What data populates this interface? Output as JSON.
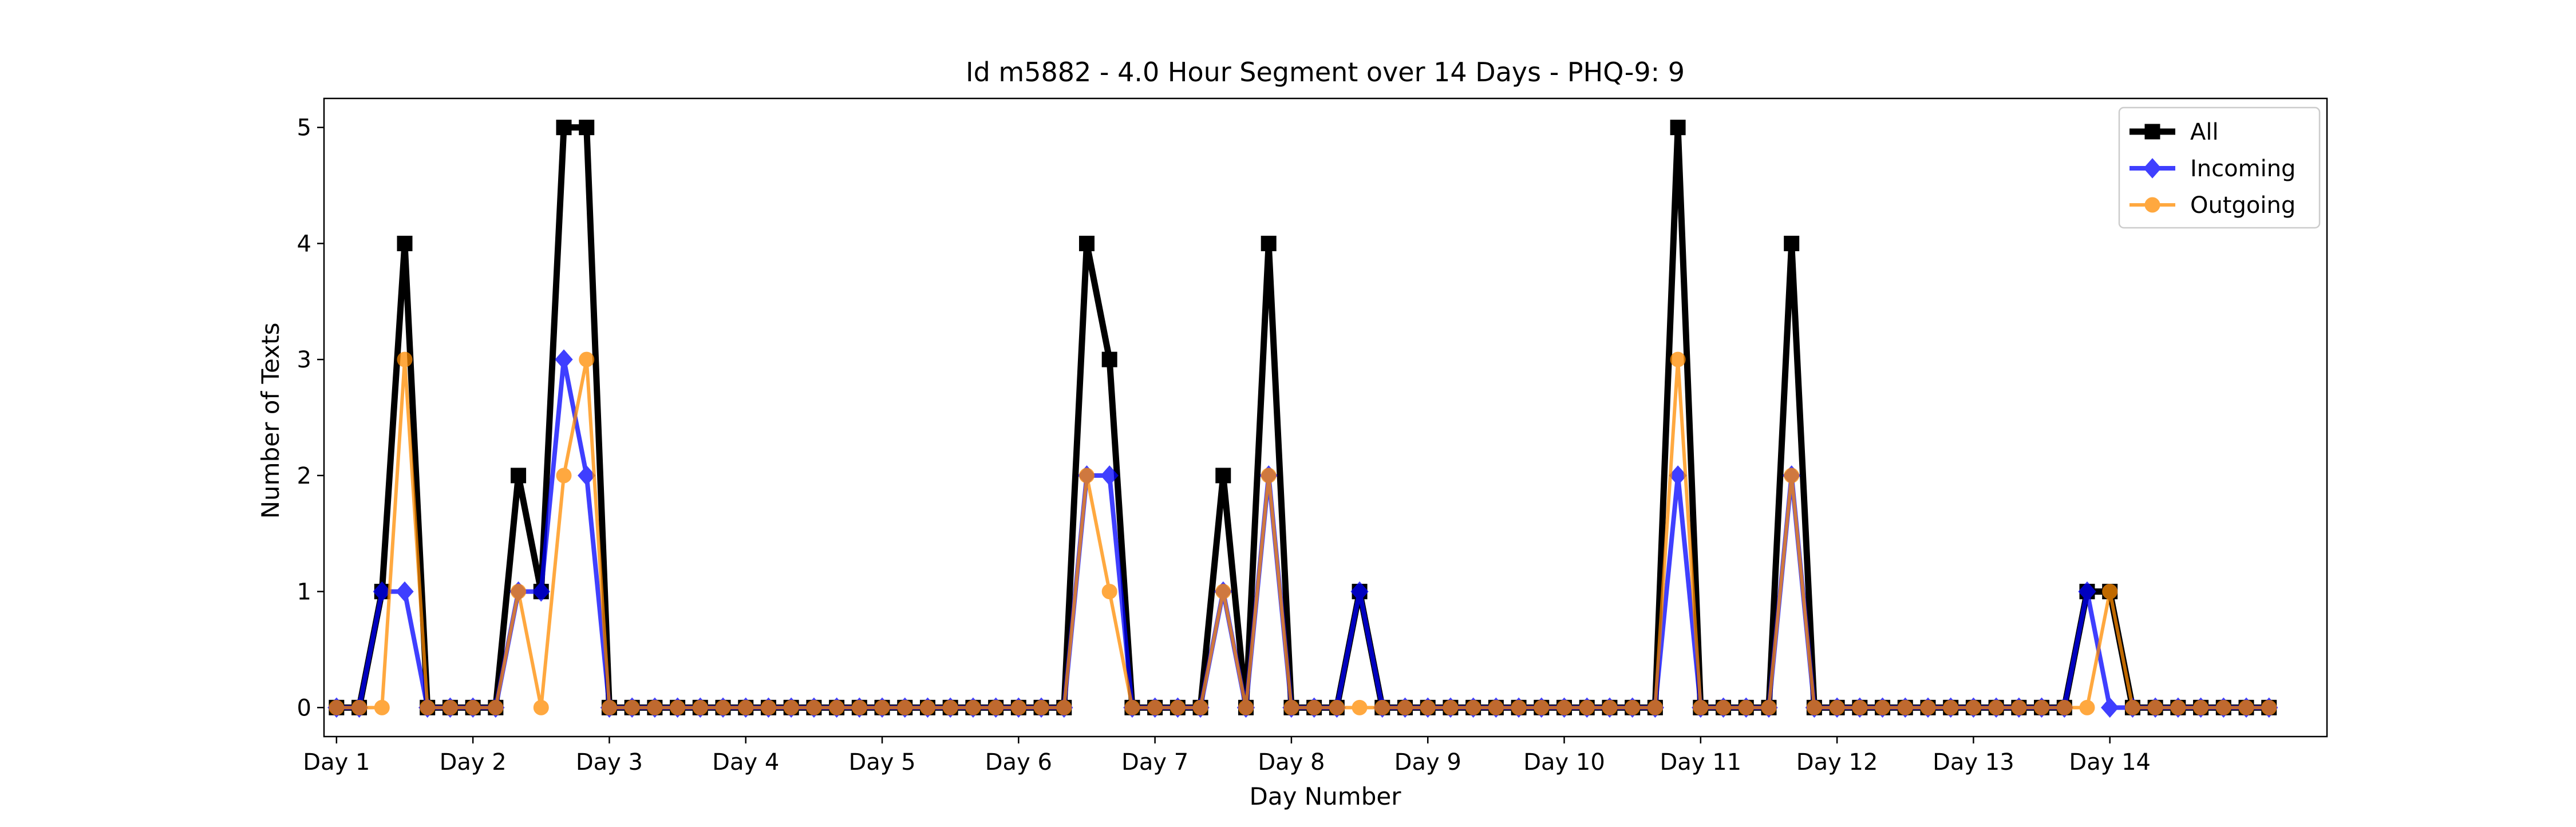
{
  "chart_data": {
    "type": "line",
    "title": "Id m5882 - 4.0 Hour Segment over 14 Days - PHQ-9: 9",
    "xlabel": "Day Number",
    "ylabel": "Number of Texts",
    "xlim": [
      -0.55,
      87.55
    ],
    "ylim": [
      -0.25,
      5.25
    ],
    "yticks": [
      0,
      1,
      2,
      3,
      4,
      5
    ],
    "xticks": [
      {
        "pos": 0,
        "label": "Day 1"
      },
      {
        "pos": 6,
        "label": "Day 2"
      },
      {
        "pos": 12,
        "label": "Day 3"
      },
      {
        "pos": 18,
        "label": "Day 4"
      },
      {
        "pos": 24,
        "label": "Day 5"
      },
      {
        "pos": 30,
        "label": "Day 6"
      },
      {
        "pos": 36,
        "label": "Day 7"
      },
      {
        "pos": 42,
        "label": "Day 8"
      },
      {
        "pos": 48,
        "label": "Day 9"
      },
      {
        "pos": 54,
        "label": "Day 10"
      },
      {
        "pos": 60,
        "label": "Day 11"
      },
      {
        "pos": 66,
        "label": "Day 12"
      },
      {
        "pos": 72,
        "label": "Day 13"
      },
      {
        "pos": 78,
        "label": "Day 14"
      }
    ],
    "legend_position": "top-right",
    "grid": false,
    "series": [
      {
        "name": "All",
        "color": "#000000",
        "marker": "square",
        "alpha": 1,
        "values": [
          0,
          0,
          1,
          4,
          0,
          0,
          0,
          0,
          2,
          1,
          5,
          5,
          0,
          0,
          0,
          0,
          0,
          0,
          0,
          0,
          0,
          0,
          0,
          0,
          0,
          0,
          0,
          0,
          0,
          0,
          0,
          0,
          0,
          4,
          3,
          0,
          0,
          0,
          0,
          2,
          0,
          4,
          0,
          0,
          0,
          1,
          0,
          0,
          0,
          0,
          0,
          0,
          0,
          0,
          0,
          0,
          0,
          0,
          0,
          5,
          0,
          0,
          0,
          0,
          4,
          0,
          0,
          0,
          0,
          0,
          0,
          0,
          0,
          0,
          0,
          0,
          0,
          1,
          1,
          0,
          0,
          0,
          0,
          0,
          0,
          0
        ]
      },
      {
        "name": "Incoming",
        "color": "#0000ff",
        "marker": "diamond",
        "alpha": 0.75,
        "values": [
          0,
          0,
          1,
          1,
          0,
          0,
          0,
          0,
          1,
          1,
          3,
          2,
          0,
          0,
          0,
          0,
          0,
          0,
          0,
          0,
          0,
          0,
          0,
          0,
          0,
          0,
          0,
          0,
          0,
          0,
          0,
          0,
          0,
          2,
          2,
          0,
          0,
          0,
          0,
          1,
          0,
          2,
          0,
          0,
          0,
          1,
          0,
          0,
          0,
          0,
          0,
          0,
          0,
          0,
          0,
          0,
          0,
          0,
          0,
          2,
          0,
          0,
          0,
          0,
          2,
          0,
          0,
          0,
          0,
          0,
          0,
          0,
          0,
          0,
          0,
          0,
          0,
          1,
          0,
          0,
          0,
          0,
          0,
          0,
          0,
          0
        ]
      },
      {
        "name": "Outgoing",
        "color": "#ff8c00",
        "marker": "circle",
        "alpha": 0.75,
        "values": [
          0,
          0,
          0,
          3,
          0,
          0,
          0,
          0,
          1,
          0,
          2,
          3,
          0,
          0,
          0,
          0,
          0,
          0,
          0,
          0,
          0,
          0,
          0,
          0,
          0,
          0,
          0,
          0,
          0,
          0,
          0,
          0,
          0,
          2,
          1,
          0,
          0,
          0,
          0,
          1,
          0,
          2,
          0,
          0,
          0,
          0,
          0,
          0,
          0,
          0,
          0,
          0,
          0,
          0,
          0,
          0,
          0,
          0,
          0,
          3,
          0,
          0,
          0,
          0,
          2,
          0,
          0,
          0,
          0,
          0,
          0,
          0,
          0,
          0,
          0,
          0,
          0,
          0,
          1,
          0,
          0,
          0,
          0,
          0,
          0,
          0
        ]
      }
    ]
  }
}
